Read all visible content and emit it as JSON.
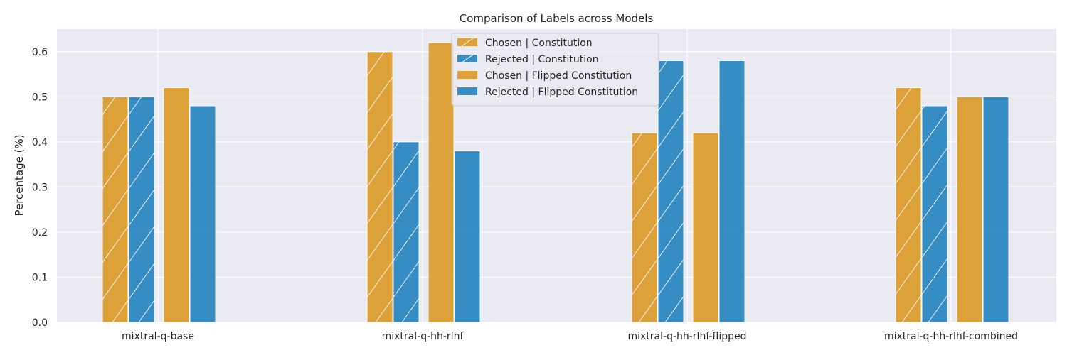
{
  "chart_data": {
    "type": "bar",
    "title": "Comparison of Labels across Models",
    "xlabel": "",
    "ylabel": "Percentage (%)",
    "ylim": [
      0,
      0.65
    ],
    "yticks": [
      0.0,
      0.1,
      0.2,
      0.3,
      0.4,
      0.5,
      0.6
    ],
    "ytick_labels": [
      "0.0",
      "0.1",
      "0.2",
      "0.3",
      "0.4",
      "0.5",
      "0.6"
    ],
    "grid": true,
    "legend_position": "top-center",
    "categories": [
      "mixtral-q-base",
      "mixtral-q-hh-rlhf",
      "mixtral-q-hh-rlhf-flipped",
      "mixtral-q-hh-rlhf-combined"
    ],
    "series": [
      {
        "name": "Chosen | Constitution",
        "color": "#dc9a25",
        "hatch": true,
        "values": [
          0.5,
          0.6,
          0.42,
          0.52
        ]
      },
      {
        "name": "Rejected | Constitution",
        "color": "#2284bf",
        "hatch": true,
        "values": [
          0.5,
          0.4,
          0.58,
          0.48
        ]
      },
      {
        "name": "Chosen | Flipped Constitution",
        "color": "#dc9a25",
        "hatch": false,
        "values": [
          0.52,
          0.62,
          0.42,
          0.5
        ]
      },
      {
        "name": "Rejected | Flipped Constitution",
        "color": "#2284bf",
        "hatch": false,
        "values": [
          0.48,
          0.38,
          0.58,
          0.5
        ]
      }
    ]
  }
}
